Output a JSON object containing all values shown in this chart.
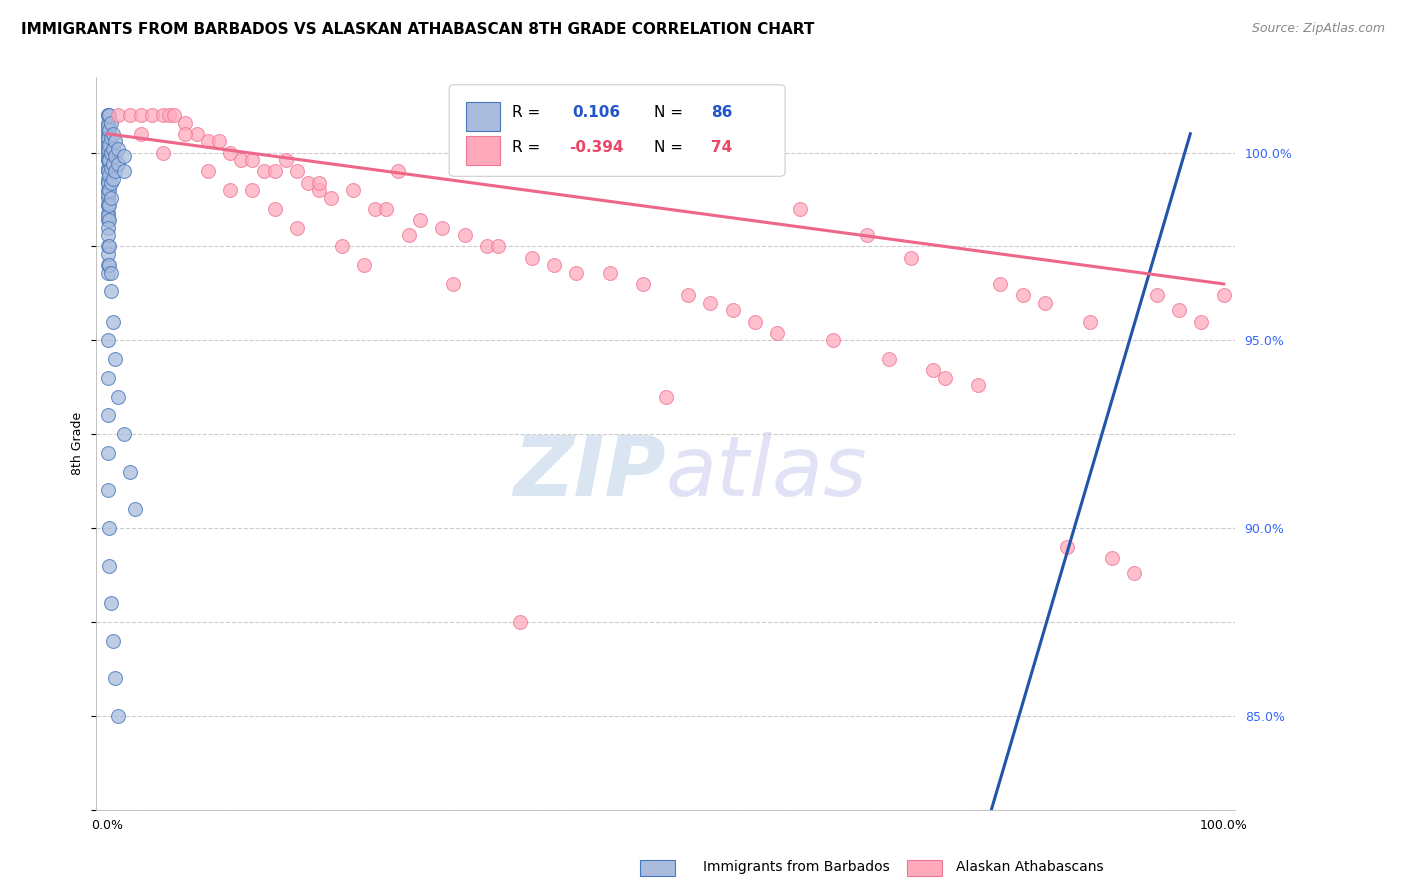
{
  "title": "IMMIGRANTS FROM BARBADOS VS ALASKAN ATHABASCAN 8TH GRADE CORRELATION CHART",
  "source": "Source: ZipAtlas.com",
  "ylabel": "8th Grade",
  "xlim": [
    -1.0,
    101.0
  ],
  "ylim": [
    82.5,
    102.0
  ],
  "yticks_right": [
    85.0,
    90.0,
    95.0,
    100.0
  ],
  "yticklabels_right": [
    "85.0%",
    "90.0%",
    "95.0%",
    "100.0%"
  ],
  "background_color": "#ffffff",
  "grid_color": "#cccccc",
  "blue_color": "#aabbdd",
  "pink_color": "#ffaabb",
  "blue_edge_color": "#4477bb",
  "pink_edge_color": "#ee7799",
  "blue_line_color": "#2255aa",
  "pink_line_color": "#ee6688",
  "blue_scatter_x": [
    0.05,
    0.05,
    0.05,
    0.05,
    0.05,
    0.05,
    0.05,
    0.05,
    0.05,
    0.05,
    0.05,
    0.05,
    0.05,
    0.05,
    0.05,
    0.05,
    0.05,
    0.05,
    0.05,
    0.05,
    0.1,
    0.1,
    0.1,
    0.1,
    0.1,
    0.1,
    0.1,
    0.1,
    0.1,
    0.1,
    0.2,
    0.2,
    0.2,
    0.2,
    0.2,
    0.2,
    0.2,
    0.2,
    0.3,
    0.3,
    0.3,
    0.3,
    0.3,
    0.3,
    0.5,
    0.5,
    0.5,
    0.5,
    0.7,
    0.7,
    0.7,
    1.0,
    1.0,
    1.5,
    1.5,
    0.05,
    0.05,
    0.05,
    0.1,
    0.1,
    0.1,
    0.2,
    0.2,
    0.3,
    0.3,
    0.5,
    0.7,
    1.0,
    1.5,
    2.0,
    2.5,
    0.05,
    0.05,
    0.05,
    0.1,
    0.1,
    0.2,
    0.2,
    0.3,
    0.5,
    0.7,
    1.0
  ],
  "blue_scatter_y": [
    101.0,
    100.8,
    100.6,
    100.5,
    100.4,
    100.3,
    100.2,
    100.1,
    100.0,
    99.9,
    99.8,
    99.6,
    99.5,
    99.3,
    99.2,
    99.0,
    98.8,
    98.6,
    98.4,
    98.2,
    101.0,
    100.7,
    100.4,
    100.1,
    99.8,
    99.5,
    99.2,
    98.9,
    98.6,
    98.3,
    101.0,
    100.6,
    100.2,
    99.8,
    99.4,
    99.0,
    98.6,
    98.2,
    100.8,
    100.4,
    100.0,
    99.6,
    99.2,
    98.8,
    100.5,
    100.1,
    99.7,
    99.3,
    100.3,
    99.9,
    99.5,
    100.1,
    99.7,
    99.9,
    99.5,
    98.0,
    97.5,
    97.0,
    97.8,
    97.3,
    96.8,
    97.5,
    97.0,
    96.8,
    96.3,
    95.5,
    94.5,
    93.5,
    92.5,
    91.5,
    90.5,
    95.0,
    94.0,
    93.0,
    92.0,
    91.0,
    90.0,
    89.0,
    88.0,
    87.0,
    86.0,
    85.0
  ],
  "pink_scatter_x": [
    1.0,
    2.0,
    3.0,
    4.0,
    5.0,
    5.5,
    6.0,
    7.0,
    8.0,
    9.0,
    10.0,
    11.0,
    12.0,
    13.0,
    14.0,
    15.0,
    16.0,
    17.0,
    18.0,
    19.0,
    20.0,
    22.0,
    24.0,
    25.0,
    26.0,
    28.0,
    30.0,
    32.0,
    34.0,
    35.0,
    38.0,
    40.0,
    42.0,
    45.0,
    48.0,
    50.0,
    52.0,
    54.0,
    56.0,
    58.0,
    60.0,
    62.0,
    65.0,
    68.0,
    70.0,
    72.0,
    74.0,
    75.0,
    78.0,
    80.0,
    82.0,
    84.0,
    86.0,
    88.0,
    90.0,
    92.0,
    94.0,
    96.0,
    98.0,
    100.0,
    3.0,
    5.0,
    7.0,
    9.0,
    11.0,
    13.0,
    15.0,
    17.0,
    19.0,
    21.0,
    23.0,
    27.0,
    31.0,
    37.0
  ],
  "pink_scatter_y": [
    101.0,
    101.0,
    101.0,
    101.0,
    101.0,
    101.0,
    101.0,
    100.8,
    100.5,
    100.3,
    100.3,
    100.0,
    99.8,
    99.8,
    99.5,
    99.5,
    99.8,
    99.5,
    99.2,
    99.0,
    98.8,
    99.0,
    98.5,
    98.5,
    99.5,
    98.2,
    98.0,
    97.8,
    97.5,
    97.5,
    97.2,
    97.0,
    96.8,
    96.8,
    96.5,
    93.5,
    96.2,
    96.0,
    95.8,
    95.5,
    95.2,
    98.5,
    95.0,
    97.8,
    94.5,
    97.2,
    94.2,
    94.0,
    93.8,
    96.5,
    96.2,
    96.0,
    89.5,
    95.5,
    89.2,
    88.8,
    96.2,
    95.8,
    95.5,
    96.2,
    100.5,
    100.0,
    100.5,
    99.5,
    99.0,
    99.0,
    98.5,
    98.0,
    99.2,
    97.5,
    97.0,
    97.8,
    96.5,
    87.5
  ],
  "blue_trend": [
    0.0,
    2.5,
    97.0,
    100.5
  ],
  "pink_trend": [
    0.0,
    100.5,
    100.0,
    96.5
  ],
  "title_fontsize": 11,
  "axis_label_fontsize": 9,
  "tick_fontsize": 9,
  "legend_fontsize": 11,
  "watermark_fontsize": 60,
  "source_fontsize": 9
}
